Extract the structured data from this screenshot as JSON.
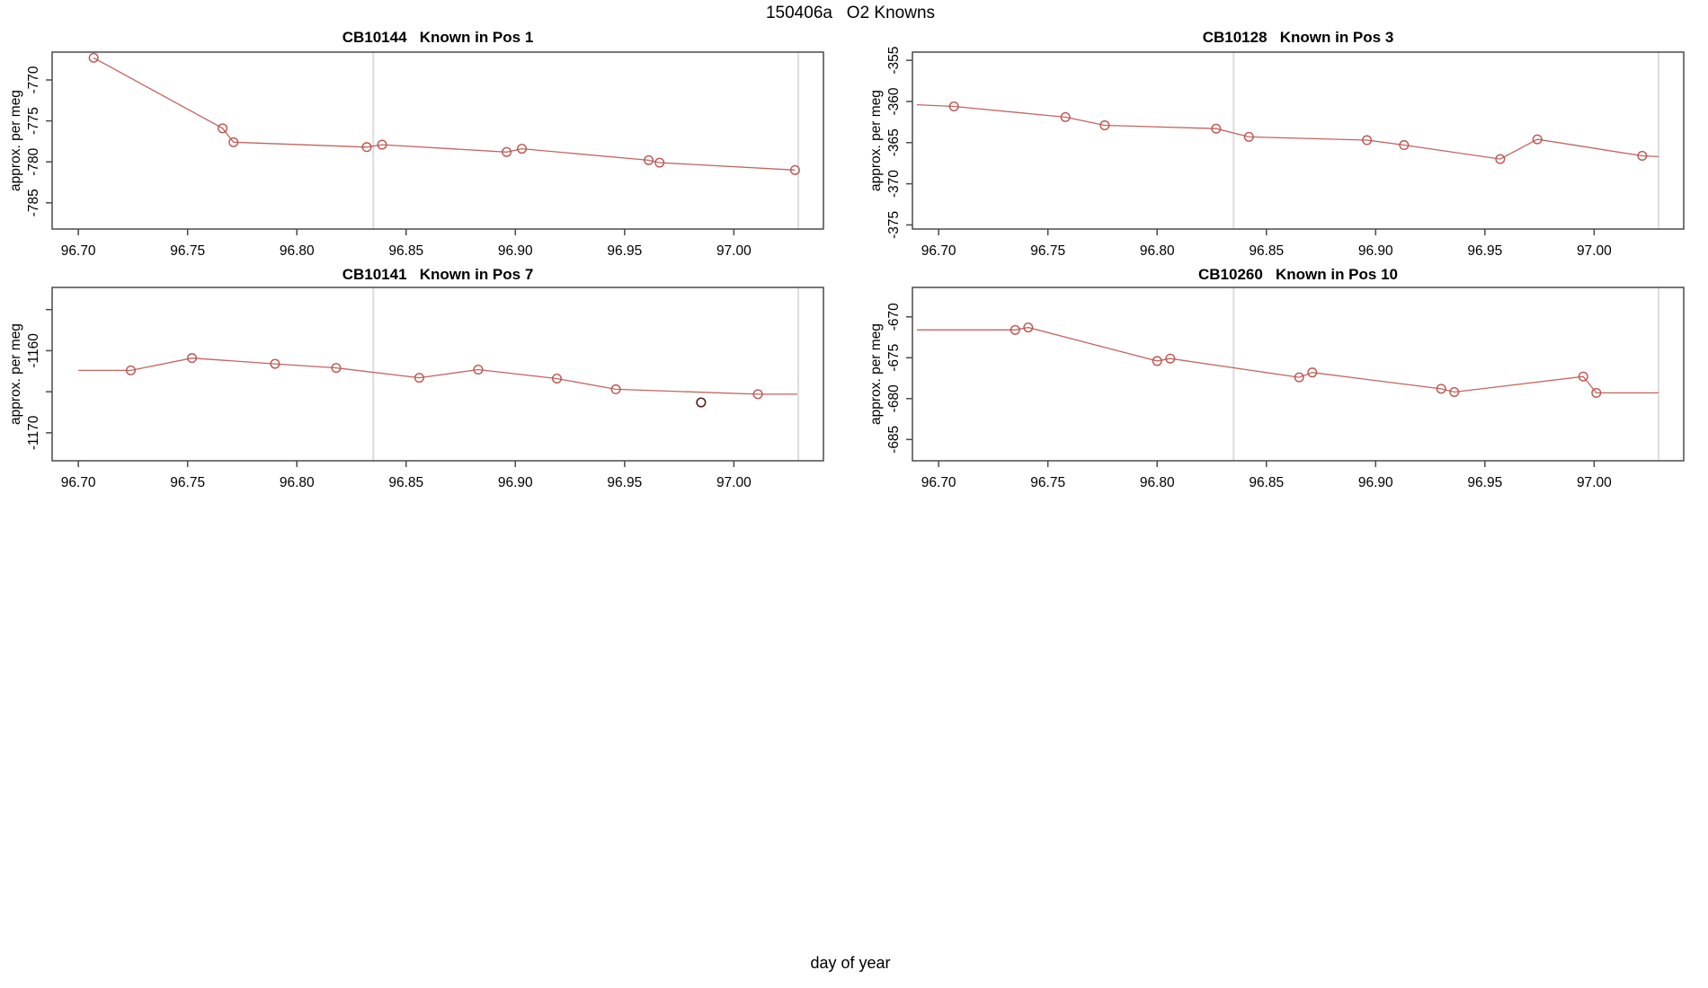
{
  "page": {
    "title": "150406a   O2 Knowns",
    "xlabel": "day of year"
  },
  "colors": {
    "series_line": "#bd534e",
    "outlier_marker": "#551f1c",
    "session_vline": "#dcdcdc",
    "axis": "#4a4a4a",
    "text": "#000000",
    "background": "#ffffff"
  },
  "chart_data": [
    {
      "type": "line",
      "title": "CB10144   Known in Pos 1",
      "series_id": "CB10144",
      "position": "Pos 1",
      "ylabel": "approx. per meg",
      "xlim": [
        96.688,
        97.041
      ],
      "ylim": [
        -788.2,
        -766.6
      ],
      "x_ticks": [
        96.7,
        96.75,
        96.8,
        96.85,
        96.9,
        96.95,
        97.0
      ],
      "y_ticks": [
        {
          "value": -770,
          "label": "-770"
        },
        {
          "value": -775,
          "label": "-775"
        },
        {
          "value": -780,
          "label": "-780"
        },
        {
          "value": -785,
          "label": "-785"
        }
      ],
      "vlines": [
        96.835,
        97.0295
      ],
      "line": [
        [
          96.707,
          -767.3
        ],
        [
          96.766,
          -775.9
        ],
        [
          96.771,
          -777.6
        ],
        [
          96.832,
          -778.2
        ],
        [
          96.839,
          -777.9
        ],
        [
          96.896,
          -778.8
        ],
        [
          96.903,
          -778.4
        ],
        [
          96.961,
          -779.8
        ],
        [
          96.966,
          -780.1
        ],
        [
          97.028,
          -781.0
        ]
      ],
      "markers": [
        [
          96.707,
          -767.3
        ],
        [
          96.766,
          -775.9
        ],
        [
          96.771,
          -777.6
        ],
        [
          96.832,
          -778.2
        ],
        [
          96.839,
          -777.9
        ],
        [
          96.896,
          -778.8
        ],
        [
          96.903,
          -778.4
        ],
        [
          96.961,
          -779.8
        ],
        [
          96.966,
          -780.1
        ],
        [
          97.028,
          -781.0
        ]
      ],
      "outliers": []
    },
    {
      "type": "line",
      "title": "CB10128   Known in Pos 3",
      "series_id": "CB10128",
      "position": "Pos 3",
      "ylabel": "approx. per meg",
      "xlim": [
        96.688,
        97.041
      ],
      "ylim": [
        -375.5,
        -354.0
      ],
      "x_ticks": [
        96.7,
        96.75,
        96.8,
        96.85,
        96.9,
        96.95,
        97.0
      ],
      "y_ticks": [
        {
          "value": -355,
          "label": "-355"
        },
        {
          "value": -360,
          "label": "-360"
        },
        {
          "value": -365,
          "label": "-365"
        },
        {
          "value": -370,
          "label": "-370"
        },
        {
          "value": -375,
          "label": "-375"
        }
      ],
      "vlines": [
        96.835,
        97.0295
      ],
      "line": [
        [
          96.69,
          -360.4
        ],
        [
          96.707,
          -360.6
        ],
        [
          96.758,
          -361.9
        ],
        [
          96.776,
          -362.9
        ],
        [
          96.827,
          -363.3
        ],
        [
          96.842,
          -364.3
        ],
        [
          96.896,
          -364.7
        ],
        [
          96.913,
          -365.3
        ],
        [
          96.957,
          -367.0
        ],
        [
          96.974,
          -364.6
        ],
        [
          97.022,
          -366.6
        ],
        [
          97.0295,
          -366.7
        ]
      ],
      "markers": [
        [
          96.707,
          -360.6
        ],
        [
          96.758,
          -361.9
        ],
        [
          96.776,
          -362.9
        ],
        [
          96.827,
          -363.3
        ],
        [
          96.842,
          -364.3
        ],
        [
          96.896,
          -364.7
        ],
        [
          96.913,
          -365.3
        ],
        [
          96.957,
          -367.0
        ],
        [
          96.974,
          -364.6
        ],
        [
          97.022,
          -366.6
        ]
      ],
      "outliers": []
    },
    {
      "type": "line",
      "title": "CB10141   Known in Pos 7",
      "series_id": "CB10141",
      "position": "Pos 7",
      "ylabel": "approx. per meg",
      "xlim": [
        96.688,
        97.041
      ],
      "ylim": [
        -1173.4,
        -1152.3
      ],
      "x_ticks": [
        96.7,
        96.75,
        96.8,
        96.85,
        96.9,
        96.95,
        97.0
      ],
      "y_ticks": [
        {
          "value": -1155,
          "label": ""
        },
        {
          "value": -1160,
          "label": "-1160"
        },
        {
          "value": -1165,
          "label": ""
        },
        {
          "value": -1170,
          "label": "-1170"
        }
      ],
      "vlines": [
        96.835,
        97.0295
      ],
      "line": [
        [
          96.7,
          -1162.4
        ],
        [
          96.724,
          -1162.4
        ],
        [
          96.752,
          -1160.9
        ],
        [
          96.79,
          -1161.6
        ],
        [
          96.818,
          -1162.1
        ],
        [
          96.856,
          -1163.3
        ],
        [
          96.883,
          -1162.3
        ],
        [
          96.919,
          -1163.4
        ],
        [
          96.946,
          -1164.7
        ],
        [
          97.011,
          -1165.3
        ],
        [
          97.029,
          -1165.3
        ]
      ],
      "markers": [
        [
          96.724,
          -1162.4
        ],
        [
          96.752,
          -1160.9
        ],
        [
          96.79,
          -1161.6
        ],
        [
          96.818,
          -1162.1
        ],
        [
          96.856,
          -1163.3
        ],
        [
          96.883,
          -1162.3
        ],
        [
          96.919,
          -1163.4
        ],
        [
          96.946,
          -1164.7
        ],
        [
          97.011,
          -1165.3
        ]
      ],
      "outliers": [
        [
          96.985,
          -1166.3
        ]
      ]
    },
    {
      "type": "line",
      "title": "CB10260   Known in Pos 10",
      "series_id": "CB10260",
      "position": "Pos 10",
      "ylabel": "approx. per meg",
      "xlim": [
        96.688,
        97.041
      ],
      "ylim": [
        -687.6,
        -666.4
      ],
      "x_ticks": [
        96.7,
        96.75,
        96.8,
        96.85,
        96.9,
        96.95,
        97.0
      ],
      "y_ticks": [
        {
          "value": -670,
          "label": "-670"
        },
        {
          "value": -675,
          "label": "-675"
        },
        {
          "value": -680,
          "label": "-680"
        },
        {
          "value": -685,
          "label": "-685"
        }
      ],
      "vlines": [
        96.835,
        97.0295
      ],
      "line": [
        [
          96.69,
          -671.6
        ],
        [
          96.735,
          -671.6
        ],
        [
          96.741,
          -671.3
        ],
        [
          96.8,
          -675.4
        ],
        [
          96.806,
          -675.1
        ],
        [
          96.865,
          -677.4
        ],
        [
          96.871,
          -676.8
        ],
        [
          96.93,
          -678.8
        ],
        [
          96.936,
          -679.2
        ],
        [
          96.995,
          -677.3
        ],
        [
          97.001,
          -679.3
        ],
        [
          97.0295,
          -679.3
        ]
      ],
      "markers": [
        [
          96.735,
          -671.6
        ],
        [
          96.741,
          -671.3
        ],
        [
          96.8,
          -675.4
        ],
        [
          96.806,
          -675.1
        ],
        [
          96.865,
          -677.4
        ],
        [
          96.871,
          -676.8
        ],
        [
          96.93,
          -678.8
        ],
        [
          96.936,
          -679.2
        ],
        [
          96.995,
          -677.3
        ],
        [
          97.001,
          -679.3
        ]
      ],
      "outliers": []
    }
  ]
}
